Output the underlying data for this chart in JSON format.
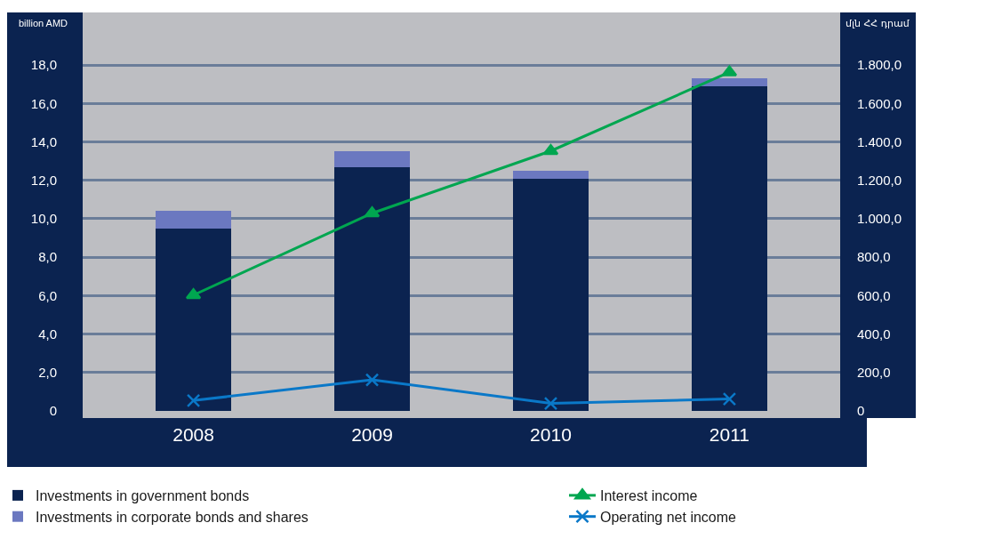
{
  "chart_data": {
    "type": "bar",
    "stacked": true,
    "ylabel": "billion AMD",
    "y2label": "մլն ՀՀ դրամ",
    "categories": [
      "2008",
      "2009",
      "2010",
      "2011"
    ],
    "series": [
      {
        "name": "Investments in government bonds",
        "color": "#0b2350",
        "values": [
          9.5,
          12.7,
          12.1,
          16.9
        ]
      },
      {
        "name": "Investments in corporate bonds and shares",
        "color": "#6b78c0",
        "values": [
          0.9,
          0.8,
          0.4,
          0.4
        ]
      },
      {
        "name": "Interest income",
        "type": "line",
        "axis": "y2",
        "marker": "triangle",
        "color": "#00a650",
        "values": [
          603,
          1029,
          1353,
          1763
        ]
      },
      {
        "name": "Operating net income",
        "type": "line",
        "axis": "y2",
        "marker": "cross",
        "color": "#0a78c8",
        "values": [
          54,
          162,
          39,
          62
        ]
      }
    ],
    "ylim": [
      0,
      20.74
    ],
    "yticks": [
      0,
      {
        "value": 2,
        "label": "2,0"
      },
      {
        "value": 4,
        "label": "4,0"
      },
      {
        "value": 6,
        "label": "6,0"
      },
      {
        "value": 8,
        "label": "8,0"
      },
      {
        "value": 10,
        "label": "10,0"
      },
      {
        "value": 12,
        "label": "12,0"
      },
      {
        "value": 14,
        "label": "14,0"
      },
      {
        "value": 16,
        "label": "16,0"
      },
      {
        "value": 18,
        "label": "18,0"
      }
    ],
    "y2lim": [
      0,
      2074
    ],
    "y2ticks": [
      0,
      {
        "value": 200,
        "label": "200,0"
      },
      {
        "value": 400,
        "label": "400,0"
      },
      {
        "value": 600,
        "label": "600,0"
      },
      {
        "value": 800,
        "label": "800,0"
      },
      {
        "value": 1000,
        "label": "1.000,0"
      },
      {
        "value": 1200,
        "label": "1.200,0"
      },
      {
        "value": 1400,
        "label": "1.400,0"
      },
      {
        "value": 1600,
        "label": "1.600,0"
      },
      {
        "value": 1800,
        "label": "1.800,0"
      }
    ],
    "grid": "y",
    "legend": "bottom"
  }
}
